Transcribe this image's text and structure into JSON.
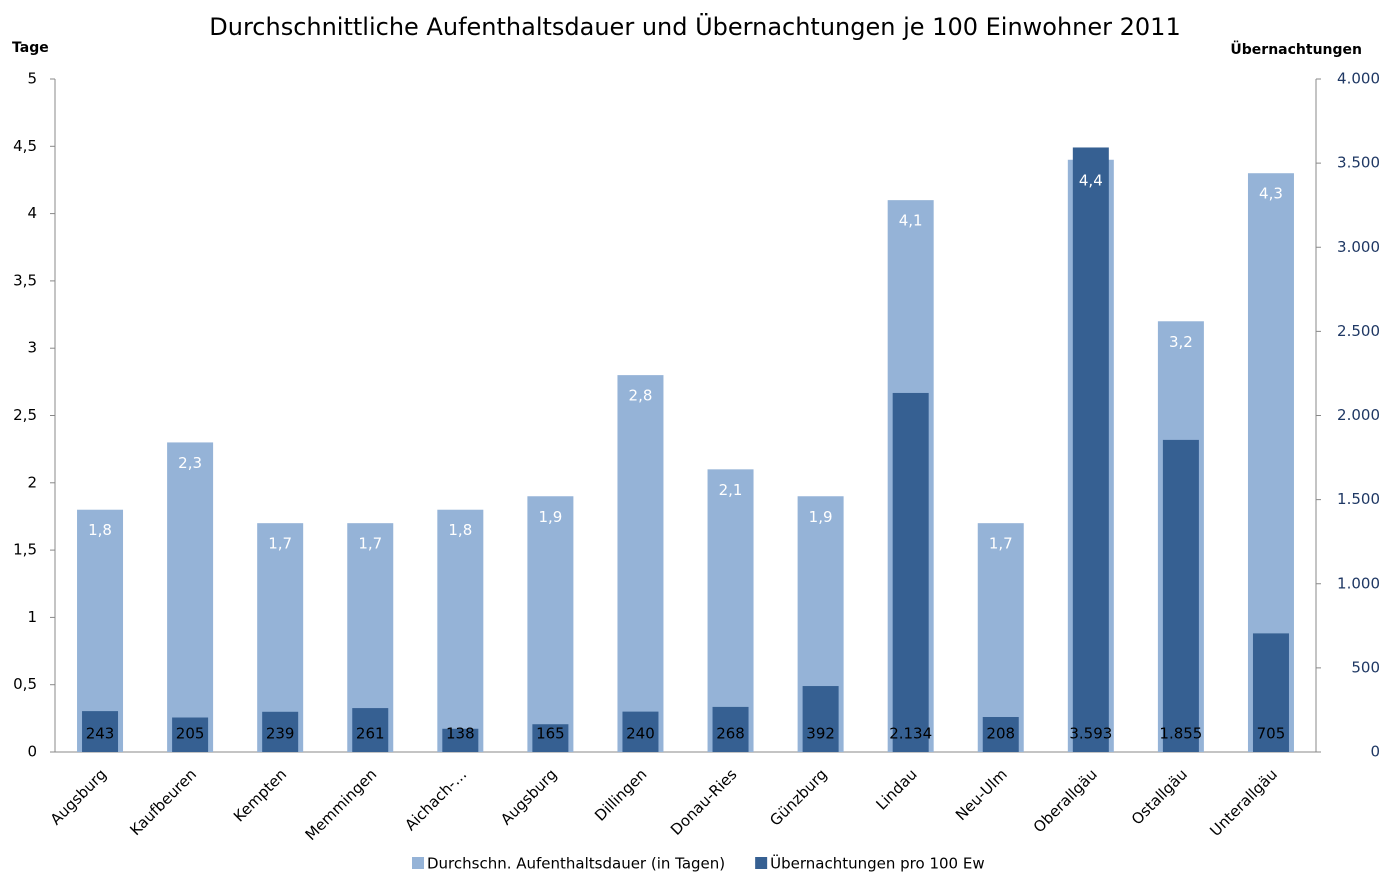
{
  "chart_data": {
    "type": "bar",
    "title": "Durchschnittliche Aufenthaltsdauer und Übernachtungen je 100 Einwohner 2011",
    "y_label": "Tage",
    "y2_label": "Übernachtungen",
    "categories": [
      "Augsburg",
      "Kaufbeuren",
      "Kempten",
      "Memmingen",
      "Aichach-…",
      "Augsburg",
      "Dillingen",
      "Donau-Ries",
      "Günzburg",
      "Lindau",
      "Neu-Ulm",
      "Oberallgäu",
      "Ostallgäu",
      "Unterallgäu"
    ],
    "series": [
      {
        "name": "Durchschn. Aufenthaltsdauer (in Tagen)",
        "color": "#95b3d7",
        "values": [
          1.8,
          2.3,
          1.7,
          1.7,
          1.8,
          1.9,
          2.8,
          2.1,
          1.9,
          4.1,
          1.7,
          4.4,
          3.2,
          4.3
        ],
        "value_labels": [
          "1,8",
          "2,3",
          "1,7",
          "1,7",
          "1,8",
          "1,9",
          "2,8",
          "2,1",
          "1,9",
          "4,1",
          "1,7",
          "4,4",
          "3,2",
          "4,3"
        ]
      },
      {
        "name": "Übernachtungen pro 100 Ew",
        "color": "#366092",
        "axis": "y2",
        "values": [
          243,
          205,
          239,
          261,
          138,
          165,
          240,
          268,
          392,
          2134,
          208,
          3593,
          1855,
          705
        ],
        "value_labels": [
          "243",
          "205",
          "239",
          "261",
          "138",
          "165",
          "240",
          "268",
          "392",
          "2.134",
          "208",
          "3.593",
          "1.855",
          "705"
        ]
      }
    ],
    "ylim": [
      0,
      5
    ],
    "yticks": [
      0,
      {
        "value": 0.5,
        "label": "0,5"
      },
      1,
      {
        "value": 1.5,
        "label": "1,5"
      },
      2,
      {
        "value": 2.5,
        "label": "2,5"
      },
      3,
      {
        "value": 3.5,
        "label": "3,5"
      },
      4,
      {
        "value": 4.5,
        "label": "4,5"
      },
      5
    ],
    "y2lim": [
      0,
      4000
    ],
    "y2ticks": [
      0,
      500,
      {
        "value": 1000,
        "label": "1.000"
      },
      {
        "value": 1500,
        "label": "1.500"
      },
      {
        "value": 2000,
        "label": "2.000"
      },
      {
        "value": 2500,
        "label": "2.500"
      },
      {
        "value": 3000,
        "label": "3.000"
      },
      {
        "value": 3500,
        "label": "3.500"
      },
      {
        "value": 4000,
        "label": "4.000"
      }
    ],
    "legend": "bottom",
    "grid": false
  }
}
